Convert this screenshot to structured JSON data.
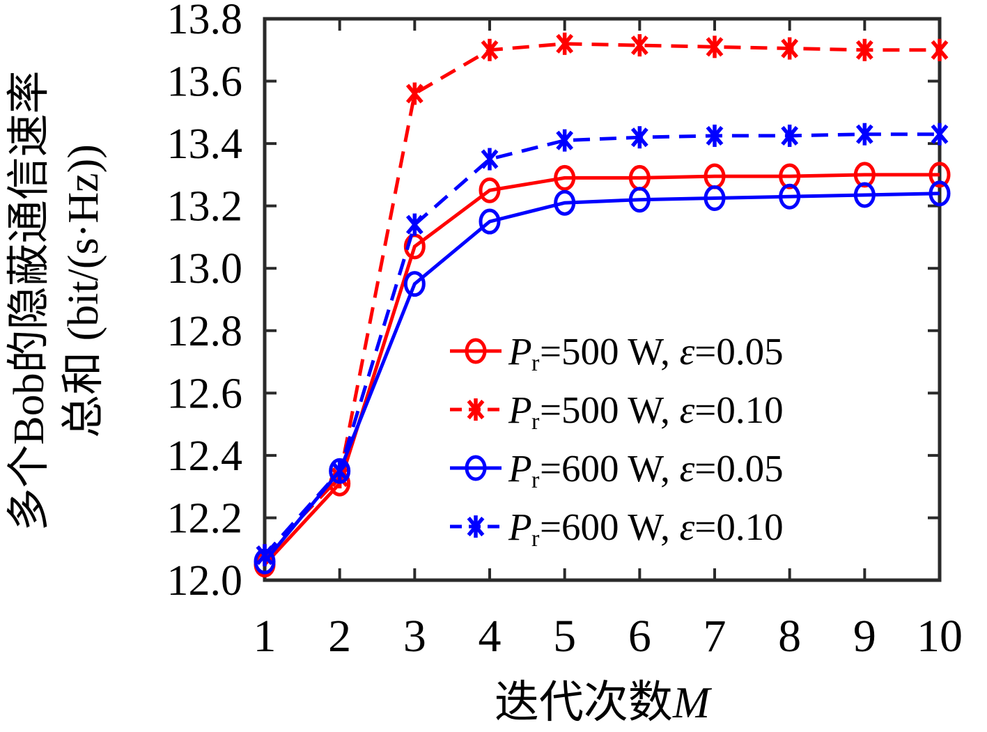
{
  "chart_data": {
    "type": "line",
    "title": "",
    "xlabel_parts": {
      "text": "迭代次数",
      "var": "M"
    },
    "ylabel_line1": "多个Bob的隐蔽通信速率",
    "ylabel_line2": "总和 (bit/(s·Hz))",
    "xlim": [
      1,
      10
    ],
    "ylim": [
      12.0,
      13.8
    ],
    "x_ticks": [
      "1",
      "2",
      "3",
      "4",
      "5",
      "6",
      "7",
      "8",
      "9",
      "10"
    ],
    "y_ticks": [
      "12.0",
      "12.2",
      "12.4",
      "12.6",
      "12.8",
      "13.0",
      "13.2",
      "13.4",
      "13.6",
      "13.8"
    ],
    "grid": false,
    "legend_position": "inside-right-middle",
    "axis_color": "#2a2a2a",
    "x": [
      1,
      2,
      3,
      4,
      5,
      6,
      7,
      8,
      9,
      10
    ],
    "series": [
      {
        "name": "Pr=500 W, ε=0.05",
        "color": "#ff0000",
        "style": "solid",
        "marker": "circle",
        "values": [
          12.05,
          12.31,
          13.07,
          13.25,
          13.29,
          13.29,
          13.295,
          13.295,
          13.3,
          13.3
        ]
      },
      {
        "name": "Pr=500 W, ε=0.10",
        "color": "#ff0000",
        "style": "dashed",
        "marker": "asterisk",
        "values": [
          12.08,
          12.33,
          13.56,
          13.7,
          13.72,
          13.715,
          13.71,
          13.705,
          13.7,
          13.7
        ]
      },
      {
        "name": "Pr=600 W, ε=0.05",
        "color": "#0000ff",
        "style": "solid",
        "marker": "circle",
        "values": [
          12.06,
          12.35,
          12.95,
          13.15,
          13.21,
          13.22,
          13.225,
          13.23,
          13.235,
          13.24
        ]
      },
      {
        "name": "Pr=600 W, ε=0.10",
        "color": "#0000ff",
        "style": "dashed",
        "marker": "asterisk",
        "values": [
          12.08,
          12.35,
          13.14,
          13.35,
          13.41,
          13.42,
          13.425,
          13.425,
          13.43,
          13.43
        ]
      }
    ],
    "legend": [
      {
        "sym": "P",
        "sub": "r",
        "rest": "=500 W, ",
        "eps": "ε",
        "val": "=0.05"
      },
      {
        "sym": "P",
        "sub": "r",
        "rest": "=500 W, ",
        "eps": "ε",
        "val": "=0.10"
      },
      {
        "sym": "P",
        "sub": "r",
        "rest": "=600 W, ",
        "eps": "ε",
        "val": "=0.05"
      },
      {
        "sym": "P",
        "sub": "r",
        "rest": "=600 W, ",
        "eps": "ε",
        "val": "=0.10"
      }
    ]
  }
}
